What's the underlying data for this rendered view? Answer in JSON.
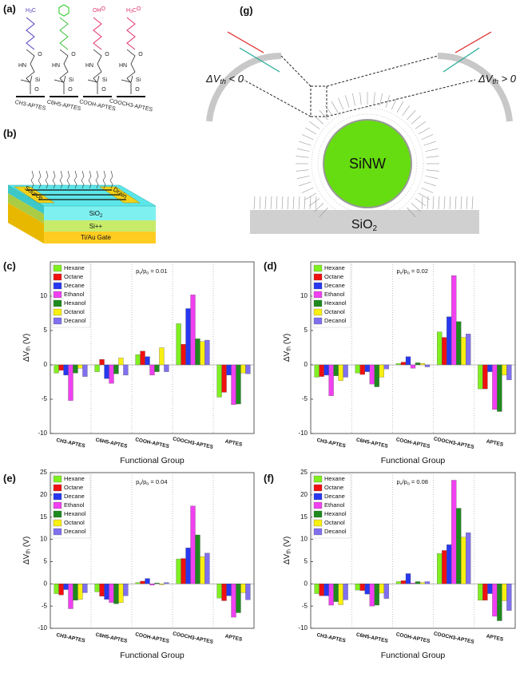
{
  "panel_a": {
    "label": "(a)",
    "molecules": [
      {
        "name": "CH3-APTES",
        "head": [
          "H",
          "3",
          "C"
        ],
        "atoms": [
          "O",
          "HN",
          "Si",
          "O"
        ]
      },
      {
        "name": "C6H5-APTES",
        "atoms": [
          "O",
          "HN",
          "Si",
          "O"
        ]
      },
      {
        "name": "COOH-APTES",
        "head": [
          "OH",
          "",
          "O"
        ],
        "atoms": [
          "O",
          "HN",
          "Si",
          "O"
        ]
      },
      {
        "name": "COOCH3-APTES",
        "head": [
          "H",
          "3",
          "C",
          "",
          "O"
        ],
        "atoms": [
          "O",
          "HN",
          "Si",
          "O"
        ]
      }
    ]
  },
  "panel_b": {
    "label": "(b)",
    "source": "Source",
    "drain": "Drain",
    "oxide": [
      "SiO",
      "2"
    ],
    "silicon": "Si++",
    "gate": "Ti/Au Gate"
  },
  "panel_g": {
    "label": "(g)",
    "left": [
      "ΔV",
      "th",
      " < 0"
    ],
    "right": [
      "ΔV",
      "th",
      " > 0"
    ],
    "wire": "SiNW",
    "substrate": [
      "SiO",
      "2"
    ]
  },
  "chart_data": [
    {
      "type": "bar",
      "panel": "(c)",
      "annotation": [
        "p",
        "v",
        "/p",
        "o",
        " = 0.01"
      ],
      "ylabel": [
        "ΔV",
        "th",
        " (V)"
      ],
      "xlabel": "Functional Group",
      "categories": [
        "CH3-APTES",
        "C6H5-APTES",
        "COOH-APTES",
        "COOCH3-APTES",
        "APTES"
      ],
      "ylim": [
        -10,
        15
      ],
      "yticks": [
        -10,
        -5,
        0,
        5,
        10
      ],
      "series": [
        {
          "name": "Hexane",
          "color": "#80f020",
          "values": [
            -1.2,
            -1.0,
            1.5,
            6.0,
            -4.7
          ]
        },
        {
          "name": "Octane",
          "color": "#f01010",
          "values": [
            -0.8,
            0.8,
            2.0,
            3.0,
            -4.0
          ]
        },
        {
          "name": "Decane",
          "color": "#2838f0",
          "values": [
            -1.5,
            -2.0,
            1.2,
            8.2,
            -1.5
          ]
        },
        {
          "name": "Ethanol",
          "color": "#f040f0",
          "values": [
            -5.2,
            -2.7,
            -1.5,
            10.2,
            -5.8
          ]
        },
        {
          "name": "Hexanol",
          "color": "#1e8a1e",
          "values": [
            -1.2,
            -1.3,
            -1.0,
            3.8,
            -5.7
          ]
        },
        {
          "name": "Octanol",
          "color": "#f8f010",
          "values": [
            -0.5,
            1.0,
            2.5,
            3.4,
            -1.2
          ]
        },
        {
          "name": "Decanol",
          "color": "#8070f0",
          "values": [
            -1.7,
            -1.5,
            -1.0,
            3.6,
            -1.3
          ]
        }
      ]
    },
    {
      "type": "bar",
      "panel": "(d)",
      "annotation": [
        "p",
        "v",
        "/p",
        "o",
        " = 0.02"
      ],
      "ylabel": [
        "ΔV",
        "th",
        " (V)"
      ],
      "xlabel": "Functional Group",
      "categories": [
        "CH3-APTES",
        "C6H5-APTES",
        "COOH-APTES",
        "COOCH3-APTES",
        "APTES"
      ],
      "ylim": [
        -10,
        15
      ],
      "yticks": [
        -10,
        -5,
        0,
        5,
        10
      ],
      "series": [
        {
          "name": "Hexane",
          "color": "#80f020",
          "values": [
            -1.8,
            -1.2,
            0.2,
            4.8,
            -3.5
          ]
        },
        {
          "name": "Octane",
          "color": "#f01010",
          "values": [
            -1.7,
            -1.4,
            0.4,
            4.0,
            -3.5
          ]
        },
        {
          "name": "Decane",
          "color": "#2838f0",
          "values": [
            -1.5,
            -1.0,
            1.2,
            7.0,
            -1.0
          ]
        },
        {
          "name": "Ethanol",
          "color": "#f040f0",
          "values": [
            -4.5,
            -2.8,
            -0.5,
            13.0,
            -6.5
          ]
        },
        {
          "name": "Hexanol",
          "color": "#1e8a1e",
          "values": [
            -1.6,
            -3.2,
            0.3,
            6.3,
            -6.8
          ]
        },
        {
          "name": "Octanol",
          "color": "#f8f010",
          "values": [
            -2.3,
            -1.8,
            0.2,
            4.0,
            -1.5
          ]
        },
        {
          "name": "Decanol",
          "color": "#8070f0",
          "values": [
            -1.8,
            -0.6,
            -0.3,
            4.5,
            -2.2
          ]
        }
      ]
    },
    {
      "type": "bar",
      "panel": "(e)",
      "annotation": [
        "p",
        "v",
        "/p",
        "o",
        " = 0.04"
      ],
      "ylabel": [
        "ΔV",
        "th",
        " (V)"
      ],
      "xlabel": "Functional Group",
      "categories": [
        "CH3-APTES",
        "C6H5-APTES",
        "COOH-APTES",
        "COOCH3-APTES",
        "APTES"
      ],
      "ylim": [
        -10,
        25
      ],
      "yticks": [
        -10,
        -5,
        0,
        5,
        10,
        15,
        20,
        25
      ],
      "series": [
        {
          "name": "Hexane",
          "color": "#80f020",
          "values": [
            -2.2,
            -1.8,
            0.3,
            5.6,
            -3.2
          ]
        },
        {
          "name": "Octane",
          "color": "#f01010",
          "values": [
            -2.5,
            -2.8,
            0.6,
            5.7,
            -3.8
          ]
        },
        {
          "name": "Decane",
          "color": "#2838f0",
          "values": [
            -1.3,
            -3.5,
            1.2,
            8.1,
            -2.7
          ]
        },
        {
          "name": "Ethanol",
          "color": "#f040f0",
          "values": [
            -5.6,
            -4.2,
            -0.3,
            17.5,
            -7.5
          ]
        },
        {
          "name": "Hexanol",
          "color": "#1e8a1e",
          "values": [
            -3.7,
            -4.5,
            0.2,
            11.0,
            -6.5
          ]
        },
        {
          "name": "Octanol",
          "color": "#f8f010",
          "values": [
            -3.5,
            -4.2,
            -0.2,
            6.1,
            -2.0
          ]
        },
        {
          "name": "Decanol",
          "color": "#8070f0",
          "values": [
            -2.0,
            -2.7,
            0.3,
            6.9,
            -3.6
          ]
        }
      ]
    },
    {
      "type": "bar",
      "panel": "(f)",
      "annotation": [
        "p",
        "v",
        "/p",
        "o",
        " = 0.08"
      ],
      "ylabel": [
        "ΔV",
        "th",
        " (V)"
      ],
      "xlabel": "Functional Group",
      "categories": [
        "CH3-APTES",
        "C6H5-APTES",
        "COOH-APTES",
        "COOCH3-APTES",
        "APTES"
      ],
      "ylim": [
        -10,
        25
      ],
      "yticks": [
        -10,
        -5,
        0,
        5,
        10,
        15,
        20,
        25
      ],
      "series": [
        {
          "name": "Hexane",
          "color": "#80f020",
          "values": [
            -2.2,
            -1.4,
            0.5,
            6.8,
            -3.7
          ]
        },
        {
          "name": "Octane",
          "color": "#f01010",
          "values": [
            -2.7,
            -1.5,
            0.7,
            7.5,
            -3.7
          ]
        },
        {
          "name": "Decane",
          "color": "#2838f0",
          "values": [
            -2.7,
            -2.3,
            2.3,
            8.8,
            -2.2
          ]
        },
        {
          "name": "Ethanol",
          "color": "#f040f0",
          "values": [
            -4.8,
            -5.0,
            0.2,
            23.3,
            -7.3
          ]
        },
        {
          "name": "Hexanol",
          "color": "#1e8a1e",
          "values": [
            -4.0,
            -4.8,
            0.5,
            17.0,
            -8.3
          ]
        },
        {
          "name": "Octanol",
          "color": "#f8f010",
          "values": [
            -4.7,
            -2.1,
            0.3,
            10.5,
            -3.8
          ]
        },
        {
          "name": "Decanol",
          "color": "#8070f0",
          "values": [
            -3.6,
            -3.3,
            0.5,
            11.5,
            -6.0
          ]
        }
      ]
    }
  ]
}
